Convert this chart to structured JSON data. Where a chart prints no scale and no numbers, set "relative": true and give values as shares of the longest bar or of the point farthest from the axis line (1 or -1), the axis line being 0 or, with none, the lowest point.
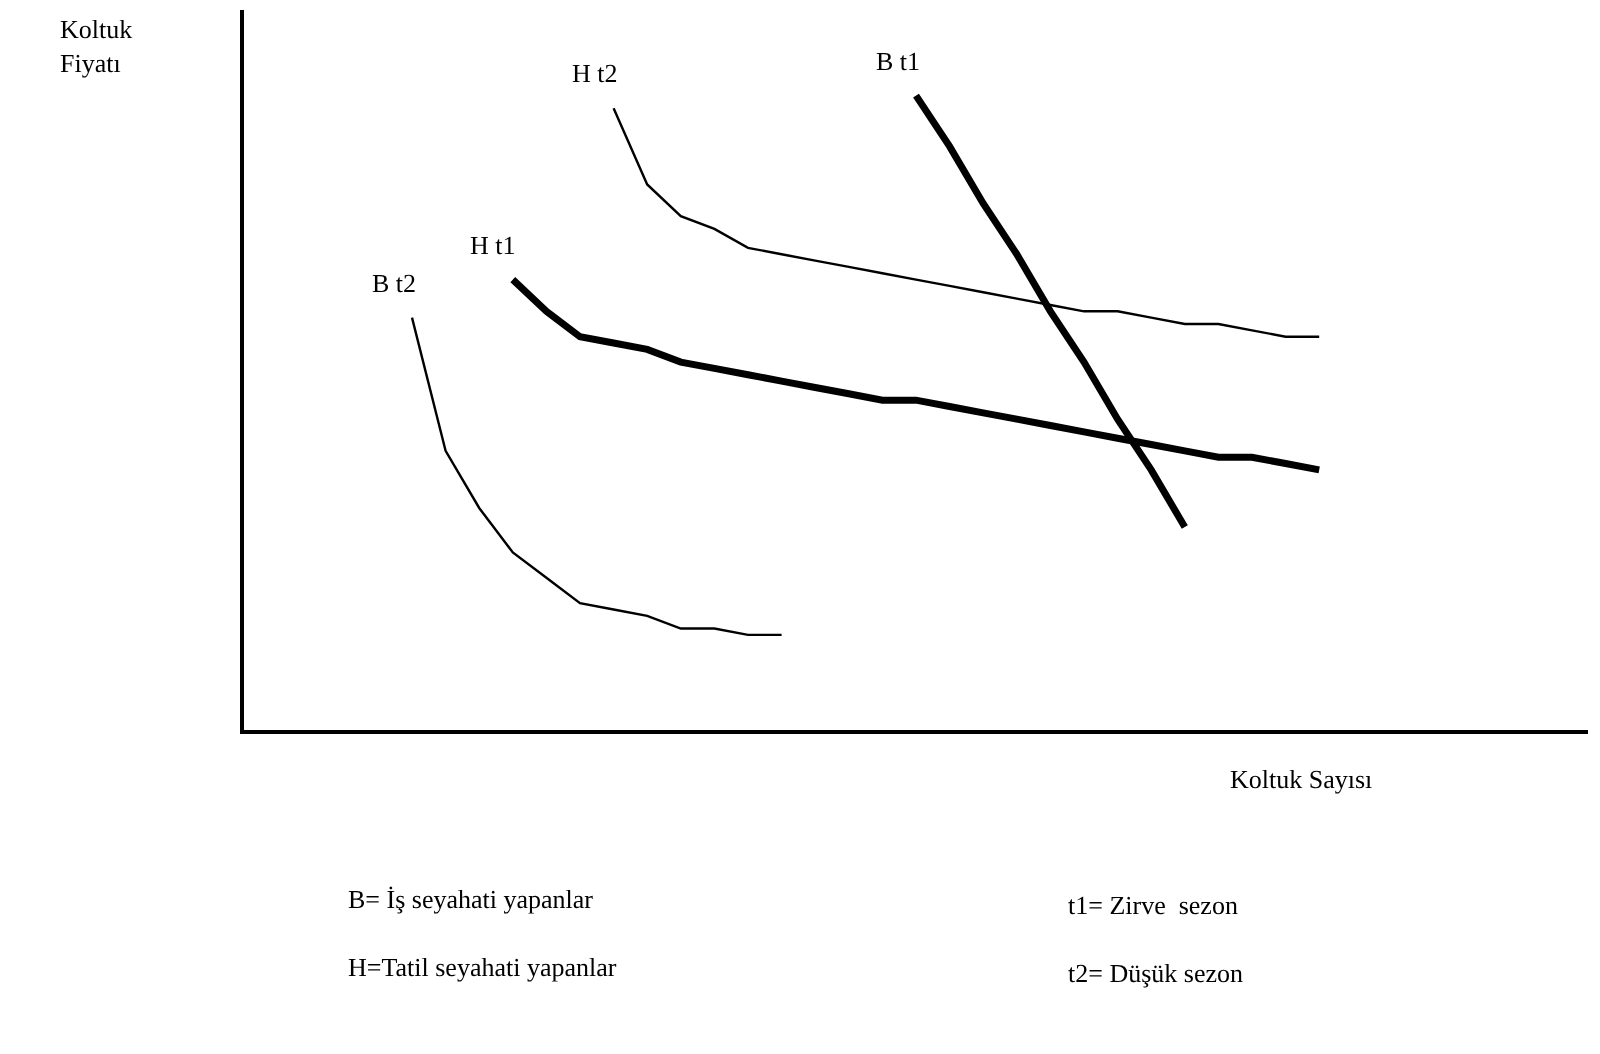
{
  "chart_data": {
    "type": "line",
    "relative": true,
    "marker": "none",
    "line_style": "solid",
    "xlabel": "Koltuk Sayısı",
    "ylabel": "Koltuk\nFiyatı",
    "categories": [
      null,
      null,
      null,
      null,
      null,
      null,
      null,
      null,
      null,
      null,
      null,
      null,
      null,
      null,
      null,
      null,
      null,
      null,
      null,
      null,
      null,
      null,
      null,
      null,
      null,
      null,
      null,
      null,
      null,
      null,
      null,
      null,
      null,
      null,
      null,
      null,
      null,
      null,
      null,
      null,
      null
    ],
    "series": [
      {
        "name": "B t1",
        "color": "#000000",
        "values": [
          null,
          null,
          null,
          null,
          null,
          null,
          null,
          null,
          null,
          null,
          null,
          null,
          null,
          null,
          null,
          null,
          null,
          null,
          null,
          null,
          1,
          0.92,
          0.83,
          0.75,
          0.66,
          0.58,
          0.49,
          0.41,
          0.32,
          null,
          null,
          null,
          null,
          null,
          null,
          null,
          null,
          null,
          null,
          null,
          null
        ]
      },
      {
        "name": "H t1",
        "color": "#000000",
        "values": [
          null,
          null,
          null,
          null,
          null,
          null,
          null,
          null,
          0.71,
          0.66,
          0.62,
          0.61,
          0.6,
          0.58,
          0.57,
          0.56,
          0.55,
          0.54,
          0.53,
          0.52,
          0.52,
          0.51,
          0.5,
          0.49,
          0.48,
          0.47,
          0.46,
          0.45,
          0.44,
          0.43,
          0.43,
          0.42,
          0.41,
          null,
          null,
          null,
          null,
          null,
          null,
          null,
          null
        ]
      },
      {
        "name": "H t2",
        "color": "#000000",
        "values": [
          null,
          null,
          null,
          null,
          null,
          null,
          null,
          null,
          null,
          null,
          null,
          0.98,
          0.86,
          0.81,
          0.79,
          0.76,
          0.75,
          0.74,
          0.73,
          0.72,
          0.71,
          0.7,
          0.69,
          0.68,
          0.67,
          0.66,
          0.66,
          0.65,
          0.64,
          0.64,
          0.63,
          0.62,
          0.62,
          null,
          null,
          null,
          null,
          null,
          null,
          null,
          null
        ]
      },
      {
        "name": "B t2",
        "color": "#000000",
        "values": [
          null,
          null,
          null,
          null,
          null,
          0.65,
          0.44,
          0.35,
          0.28,
          0.24,
          0.2,
          0.19,
          0.18,
          0.16,
          0.16,
          0.15,
          0.15,
          null,
          null,
          null,
          null,
          null,
          null,
          null,
          null,
          null,
          null,
          null,
          null,
          null,
          null,
          null,
          null,
          null,
          null,
          null,
          null,
          null,
          null,
          null,
          null
        ]
      }
    ],
    "annotations": [
      "B= İş seyahati yapanlar",
      "H=Tatil seyahati yapanlar",
      "t1= Zirve  sezon",
      "t2= Düşük sezon"
    ]
  }
}
